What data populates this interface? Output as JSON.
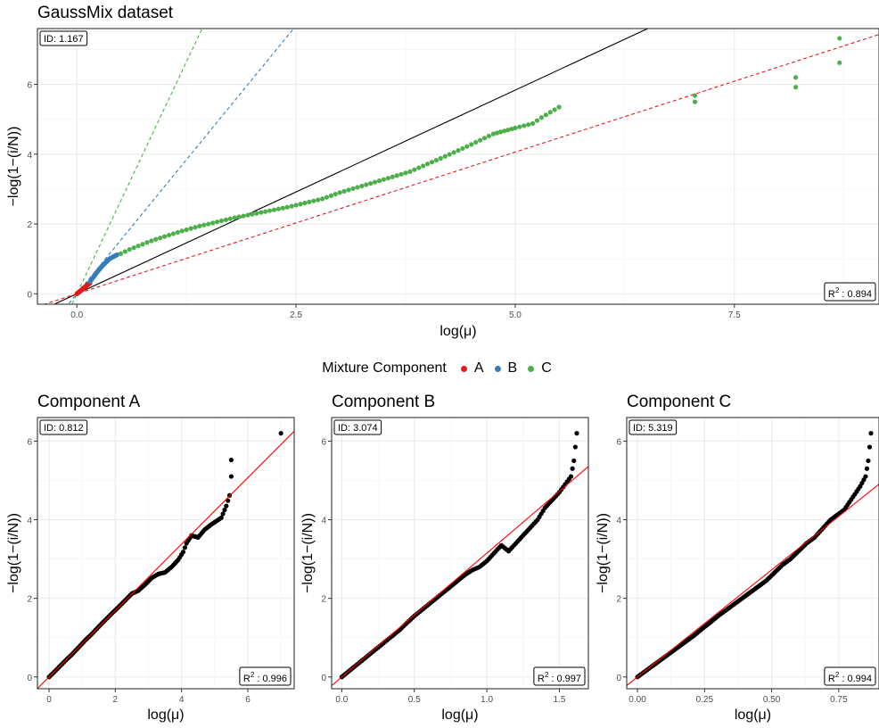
{
  "chart_data": [
    {
      "type": "scatter",
      "title": "GaussMix dataset",
      "xlabel": "log(μ)",
      "ylabel": "−log(1−(i/N))",
      "xlim": [
        -0.45,
        9.15
      ],
      "ylim": [
        -0.3,
        7.6
      ],
      "xticks": [
        0,
        2.5,
        5,
        7.5
      ],
      "xtick_labels": [
        "0.0",
        "2.5",
        "5.0",
        "7.5"
      ],
      "yticks": [
        0,
        2,
        4,
        6
      ],
      "ytick_labels": [
        "0",
        "2",
        "4",
        "6"
      ],
      "grid": true,
      "id_label": "ID: 1.167",
      "r2_value": "0.894",
      "reference_lines": [
        {
          "color": "#000000",
          "style": "solid",
          "slope": 1.167
        },
        {
          "color": "#E41A1C",
          "style": "dashed",
          "slope": 0.812
        },
        {
          "color": "#377EB8",
          "style": "dashed",
          "slope": 3.074
        },
        {
          "color": "#4DAF4A",
          "style": "dashed",
          "slope": 5.319
        }
      ],
      "series": [
        {
          "name": "A",
          "color": "#E41A1C",
          "points": [
            [
              0,
              0
            ],
            [
              0.01,
              0.02
            ],
            [
              0.02,
              0.04
            ],
            [
              0.03,
              0.06
            ],
            [
              0.04,
              0.08
            ],
            [
              0.05,
              0.1
            ],
            [
              0.06,
              0.12
            ],
            [
              0.07,
              0.15
            ],
            [
              0.08,
              0.17
            ],
            [
              0.09,
              0.19
            ],
            [
              0.1,
              0.21
            ],
            [
              0.11,
              0.23
            ],
            [
              0.12,
              0.25
            ],
            [
              0.13,
              0.27
            ],
            [
              0.14,
              0.29
            ],
            [
              0.15,
              0.31
            ]
          ]
        },
        {
          "name": "B",
          "color": "#377EB8",
          "points": [
            [
              0.15,
              0.35
            ],
            [
              0.17,
              0.42
            ],
            [
              0.19,
              0.48
            ],
            [
              0.21,
              0.55
            ],
            [
              0.23,
              0.62
            ],
            [
              0.25,
              0.68
            ],
            [
              0.27,
              0.74
            ],
            [
              0.29,
              0.8
            ],
            [
              0.31,
              0.85
            ],
            [
              0.33,
              0.9
            ],
            [
              0.35,
              0.95
            ],
            [
              0.37,
              1.0
            ],
            [
              0.4,
              1.04
            ],
            [
              0.43,
              1.08
            ],
            [
              0.46,
              1.12
            ]
          ]
        },
        {
          "name": "C",
          "color": "#4DAF4A",
          "points": [
            [
              0.5,
              1.15
            ],
            [
              0.6,
              1.27
            ],
            [
              0.7,
              1.37
            ],
            [
              0.8,
              1.47
            ],
            [
              0.9,
              1.56
            ],
            [
              1.0,
              1.64
            ],
            [
              1.1,
              1.72
            ],
            [
              1.2,
              1.8
            ],
            [
              1.3,
              1.87
            ],
            [
              1.4,
              1.94
            ],
            [
              1.5,
              2.0
            ],
            [
              1.6,
              2.06
            ],
            [
              1.7,
              2.12
            ],
            [
              1.8,
              2.18
            ],
            [
              1.9,
              2.23
            ],
            [
              2.0,
              2.28
            ],
            [
              2.2,
              2.38
            ],
            [
              2.4,
              2.48
            ],
            [
              2.6,
              2.6
            ],
            [
              2.8,
              2.72
            ],
            [
              3.0,
              2.9
            ],
            [
              3.2,
              3.05
            ],
            [
              3.4,
              3.2
            ],
            [
              3.6,
              3.35
            ],
            [
              3.8,
              3.5
            ],
            [
              4.0,
              3.72
            ],
            [
              4.15,
              3.88
            ],
            [
              4.3,
              4.05
            ],
            [
              4.45,
              4.22
            ],
            [
              4.6,
              4.4
            ],
            [
              4.75,
              4.58
            ],
            [
              5.0,
              4.75
            ],
            [
              5.2,
              4.88
            ],
            [
              5.3,
              5.05
            ],
            [
              5.4,
              5.2
            ],
            [
              5.5,
              5.35
            ],
            [
              7.05,
              5.5
            ],
            [
              7.05,
              5.68
            ],
            [
              8.2,
              5.92
            ],
            [
              8.2,
              6.2
            ],
            [
              8.7,
              6.62
            ],
            [
              8.7,
              7.32
            ]
          ]
        }
      ]
    },
    {
      "type": "scatter",
      "title": "Component A",
      "xlabel": "log(μ)",
      "ylabel": "−log(1−(i/N))",
      "xlim": [
        -0.35,
        7.4
      ],
      "ylim": [
        -0.3,
        6.6
      ],
      "xticks": [
        0,
        2,
        4,
        6
      ],
      "xtick_labels": [
        "0",
        "2",
        "4",
        "6"
      ],
      "yticks": [
        0,
        2,
        4,
        6
      ],
      "ytick_labels": [
        "0",
        "2",
        "4",
        "6"
      ],
      "grid": true,
      "id_label": "ID: 0.812",
      "r2_value": "0.996",
      "fit_line": {
        "color": "#FF0000",
        "slope": 0.845,
        "intercept": 0
      },
      "points": [
        [
          0,
          0
        ],
        [
          0.15,
          0.12
        ],
        [
          0.3,
          0.25
        ],
        [
          0.5,
          0.42
        ],
        [
          0.7,
          0.58
        ],
        [
          0.9,
          0.76
        ],
        [
          1.1,
          0.94
        ],
        [
          1.3,
          1.1
        ],
        [
          1.5,
          1.28
        ],
        [
          1.7,
          1.45
        ],
        [
          1.9,
          1.62
        ],
        [
          2.1,
          1.78
        ],
        [
          2.3,
          1.95
        ],
        [
          2.5,
          2.12
        ],
        [
          2.7,
          2.2
        ],
        [
          2.9,
          2.35
        ],
        [
          3.1,
          2.52
        ],
        [
          3.3,
          2.62
        ],
        [
          3.5,
          2.66
        ],
        [
          3.7,
          2.8
        ],
        [
          3.9,
          2.98
        ],
        [
          4.05,
          3.18
        ],
        [
          4.15,
          3.4
        ],
        [
          4.3,
          3.6
        ],
        [
          4.5,
          3.55
        ],
        [
          4.7,
          3.75
        ],
        [
          4.9,
          3.88
        ],
        [
          5.2,
          4.05
        ],
        [
          5.35,
          4.35
        ],
        [
          5.45,
          4.62
        ],
        [
          5.5,
          5.1
        ],
        [
          5.5,
          5.52
        ],
        [
          7.0,
          6.2
        ]
      ]
    },
    {
      "type": "scatter",
      "title": "Component B",
      "xlabel": "log(μ)",
      "ylabel": "−log(1−(i/N))",
      "xlim": [
        -0.07,
        1.7
      ],
      "ylim": [
        -0.3,
        6.6
      ],
      "xticks": [
        0,
        0.5,
        1.0,
        1.5
      ],
      "xtick_labels": [
        "0.0",
        "0.5",
        "1.0",
        "1.5"
      ],
      "yticks": [
        0,
        2,
        4,
        6
      ],
      "ytick_labels": [
        "0",
        "2",
        "4",
        "6"
      ],
      "grid": true,
      "id_label": "ID: 3.074",
      "r2_value": "0.997",
      "fit_line": {
        "color": "#FF0000",
        "slope": 3.15,
        "intercept": 0
      },
      "points": [
        [
          0,
          0
        ],
        [
          0.05,
          0.15
        ],
        [
          0.1,
          0.3
        ],
        [
          0.15,
          0.45
        ],
        [
          0.2,
          0.6
        ],
        [
          0.25,
          0.75
        ],
        [
          0.3,
          0.9
        ],
        [
          0.35,
          1.05
        ],
        [
          0.4,
          1.2
        ],
        [
          0.45,
          1.38
        ],
        [
          0.5,
          1.55
        ],
        [
          0.55,
          1.7
        ],
        [
          0.6,
          1.85
        ],
        [
          0.65,
          2.0
        ],
        [
          0.7,
          2.15
        ],
        [
          0.75,
          2.3
        ],
        [
          0.8,
          2.45
        ],
        [
          0.85,
          2.6
        ],
        [
          0.9,
          2.72
        ],
        [
          0.95,
          2.8
        ],
        [
          1.0,
          2.95
        ],
        [
          1.05,
          3.15
        ],
        [
          1.1,
          3.35
        ],
        [
          1.15,
          3.2
        ],
        [
          1.2,
          3.4
        ],
        [
          1.25,
          3.6
        ],
        [
          1.3,
          3.8
        ],
        [
          1.35,
          4.0
        ],
        [
          1.4,
          4.3
        ],
        [
          1.45,
          4.5
        ],
        [
          1.5,
          4.7
        ],
        [
          1.58,
          5.1
        ],
        [
          1.6,
          5.5
        ],
        [
          1.62,
          6.2
        ]
      ]
    },
    {
      "type": "scatter",
      "title": "Component C",
      "xlabel": "log(μ)",
      "ylabel": "−log(1−(i/N))",
      "xlim": [
        -0.04,
        0.9
      ],
      "ylim": [
        -0.3,
        6.6
      ],
      "xticks": [
        0,
        0.25,
        0.5,
        0.75
      ],
      "xtick_labels": [
        "0.00",
        "0.25",
        "0.50",
        "0.75"
      ],
      "yticks": [
        0,
        2,
        4,
        6
      ],
      "ytick_labels": [
        "0",
        "2",
        "4",
        "6"
      ],
      "grid": true,
      "id_label": "ID: 5.319",
      "r2_value": "0.994",
      "fit_line": {
        "color": "#FF0000",
        "slope": 5.45,
        "intercept": 0
      },
      "points": [
        [
          0,
          0
        ],
        [
          0.03,
          0.15
        ],
        [
          0.06,
          0.3
        ],
        [
          0.09,
          0.45
        ],
        [
          0.12,
          0.6
        ],
        [
          0.15,
          0.75
        ],
        [
          0.18,
          0.9
        ],
        [
          0.21,
          1.05
        ],
        [
          0.24,
          1.22
        ],
        [
          0.27,
          1.38
        ],
        [
          0.3,
          1.55
        ],
        [
          0.33,
          1.7
        ],
        [
          0.36,
          1.85
        ],
        [
          0.39,
          2.0
        ],
        [
          0.42,
          2.15
        ],
        [
          0.45,
          2.3
        ],
        [
          0.48,
          2.45
        ],
        [
          0.51,
          2.65
        ],
        [
          0.54,
          2.85
        ],
        [
          0.57,
          3.0
        ],
        [
          0.6,
          3.2
        ],
        [
          0.63,
          3.4
        ],
        [
          0.66,
          3.55
        ],
        [
          0.68,
          3.7
        ],
        [
          0.7,
          3.85
        ],
        [
          0.72,
          4.0
        ],
        [
          0.74,
          4.1
        ],
        [
          0.77,
          4.25
        ],
        [
          0.79,
          4.45
        ],
        [
          0.81,
          4.65
        ],
        [
          0.83,
          4.85
        ],
        [
          0.85,
          5.1
        ],
        [
          0.86,
          5.5
        ],
        [
          0.87,
          6.2
        ]
      ]
    }
  ],
  "legend": {
    "title": "Mixture Component",
    "items": [
      {
        "label": "A",
        "color": "#E41A1C"
      },
      {
        "label": "B",
        "color": "#377EB8"
      },
      {
        "label": "C",
        "color": "#4DAF4A"
      }
    ]
  },
  "r2_prefix": "R",
  "r2_sup": "2",
  "r2_sep": " : "
}
